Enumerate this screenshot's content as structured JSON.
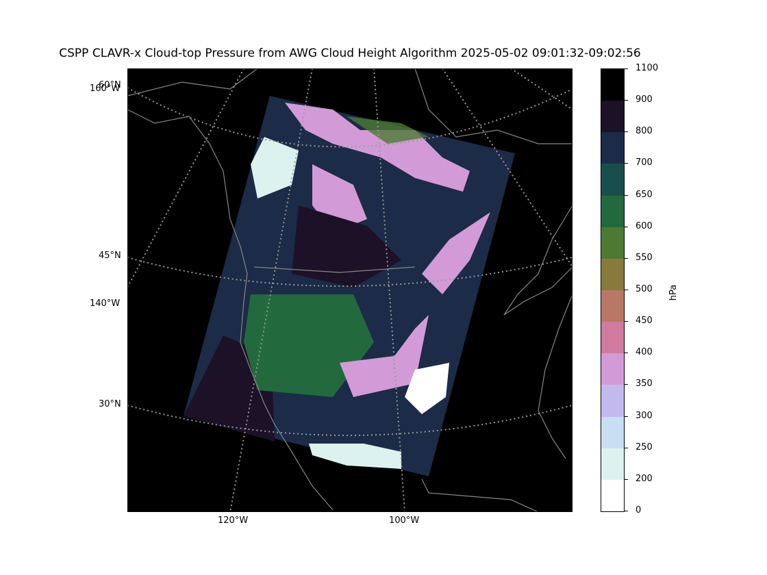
{
  "title": "CSPP CLAVR-x Cloud-top Pressure from AWG Cloud Height Algorithm 2025-05-02 09:01:32-09:02:56",
  "map": {
    "lat_labels": [
      "60°N",
      "45°N",
      "30°N"
    ],
    "lon_labels_left": [
      "160°W",
      "140°W"
    ],
    "lon_labels_bottom": [
      "120°W",
      "100°W"
    ]
  },
  "colorbar": {
    "unit": "hPa",
    "ticks": [
      "1100",
      "900",
      "800",
      "700",
      "650",
      "600",
      "550",
      "500",
      "450",
      "400",
      "350",
      "300",
      "250",
      "200",
      "0"
    ],
    "colors": [
      "#000000",
      "#1c1127",
      "#1c2b47",
      "#184f4e",
      "#226a3e",
      "#4c7a33",
      "#887a3b",
      "#b97766",
      "#d07b9f",
      "#d29bd7",
      "#c3b9ef",
      "#c8def3",
      "#dcf2ee",
      "#ffffff"
    ]
  }
}
